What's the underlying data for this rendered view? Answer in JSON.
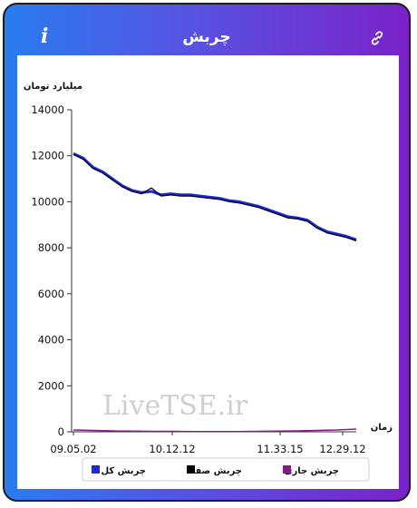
{
  "header": {
    "title": "چربش",
    "info_label": "i"
  },
  "watermark": "LiveTSE.ir",
  "colors": {
    "header_gradient_start": "#2a7cf0",
    "header_gradient_end": "#7a22c8",
    "total": "#1a2ad8",
    "queue": "#000000",
    "current": "#8a1a8a"
  },
  "chart_data": {
    "type": "line",
    "ylabel": "میلیارد تومان",
    "xlabel": "زمان",
    "ylim": [
      0,
      14000
    ],
    "yticks": [
      0,
      2000,
      4000,
      6000,
      8000,
      10000,
      12000,
      14000
    ],
    "xtick_labels": [
      "09.05.02",
      "10.12.12",
      "11.33.15",
      "12.29.12"
    ],
    "legend_position": "bottom",
    "series": [
      {
        "name": "چربش کل",
        "color": "#1a2ad8",
        "x": [
          "09.05.02",
          "09.07",
          "09.10",
          "09.13",
          "09.16",
          "09.20",
          "09.25",
          "09.30",
          "09.35",
          "09.40",
          "09.45",
          "09.50",
          "09.55",
          "10.00",
          "10.05",
          "10.12.12",
          "10.20",
          "10.30",
          "10.40",
          "10.50",
          "11.00",
          "11.10",
          "11.20",
          "11.33.15",
          "11.40",
          "11.50",
          "12.00",
          "12.10",
          "12.20",
          "12.29.12"
        ],
        "values": [
          12100,
          11900,
          11500,
          11300,
          11000,
          10700,
          10500,
          10400,
          10450,
          10300,
          10350,
          10300,
          10300,
          10250,
          10200,
          10150,
          10050,
          10000,
          9900,
          9800,
          9650,
          9500,
          9350,
          9300,
          9200,
          8900,
          8700,
          8600,
          8500,
          8350
        ]
      },
      {
        "name": "چربش صف",
        "color": "#000000",
        "x": [
          "09.05.02",
          "09.07",
          "09.10",
          "09.13",
          "09.16",
          "09.20",
          "09.25",
          "09.30",
          "09.35",
          "09.40",
          "09.45",
          "09.50",
          "09.55",
          "10.00",
          "10.05",
          "10.12.12",
          "10.20",
          "10.30",
          "10.40",
          "10.50",
          "11.00",
          "11.10",
          "11.20",
          "11.33.15",
          "11.40",
          "11.50",
          "12.00",
          "12.10",
          "12.20",
          "12.29.12"
        ],
        "values": [
          12050,
          11850,
          11450,
          11250,
          10950,
          10650,
          10450,
          10350,
          10600,
          10250,
          10300,
          10250,
          10250,
          10200,
          10150,
          10100,
          10000,
          9950,
          9850,
          9750,
          9600,
          9450,
          9300,
          9250,
          9150,
          8850,
          8650,
          8550,
          8450,
          8300
        ]
      },
      {
        "name": "چربش جاری",
        "color": "#8a1a8a",
        "x": [
          "09.05.02",
          "09.10",
          "09.20",
          "09.30",
          "09.40",
          "09.50",
          "10.00",
          "10.12.12",
          "10.30",
          "10.50",
          "11.10",
          "11.33.15",
          "11.50",
          "12.10",
          "12.29.12"
        ],
        "values": [
          80,
          60,
          40,
          30,
          20,
          20,
          10,
          10,
          10,
          20,
          30,
          40,
          60,
          80,
          120
        ]
      }
    ]
  }
}
